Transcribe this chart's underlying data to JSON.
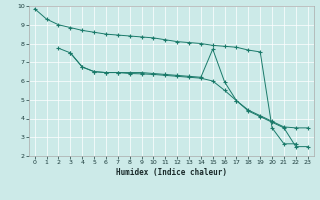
{
  "xlabel": "Humidex (Indice chaleur)",
  "bg_color": "#cceae8",
  "grid_color": "#ffffff",
  "line_color": "#1a7a6a",
  "xlim": [
    -0.5,
    23.5
  ],
  "ylim": [
    2,
    10
  ],
  "xticks": [
    0,
    1,
    2,
    3,
    4,
    5,
    6,
    7,
    8,
    9,
    10,
    11,
    12,
    13,
    14,
    15,
    16,
    17,
    18,
    19,
    20,
    21,
    22,
    23
  ],
  "yticks": [
    2,
    3,
    4,
    5,
    6,
    7,
    8,
    9,
    10
  ],
  "line1_x": [
    0,
    1,
    2,
    3,
    4,
    5,
    6,
    7,
    8,
    9,
    10,
    11,
    12,
    13,
    14,
    15,
    16,
    17,
    18,
    19,
    20,
    21,
    22
  ],
  "line1_y": [
    9.85,
    9.3,
    9.0,
    8.85,
    8.7,
    8.6,
    8.5,
    8.45,
    8.4,
    8.35,
    8.3,
    8.2,
    8.1,
    8.05,
    8.0,
    7.9,
    7.85,
    7.8,
    7.65,
    7.55,
    3.5,
    2.65,
    2.65
  ],
  "line2_x": [
    2,
    3,
    4,
    5,
    6,
    7,
    8,
    9,
    10,
    11,
    12,
    13,
    14,
    15,
    16,
    17,
    18,
    19,
    20,
    21,
    22,
    23
  ],
  "line2_y": [
    7.75,
    7.5,
    6.75,
    6.5,
    6.45,
    6.45,
    6.45,
    6.45,
    6.4,
    6.35,
    6.3,
    6.25,
    6.2,
    7.7,
    5.95,
    4.95,
    4.4,
    4.1,
    3.8,
    3.5,
    2.5,
    2.5
  ],
  "line3_x": [
    3,
    4,
    5,
    6,
    7,
    8,
    9,
    10,
    11,
    12,
    13,
    14,
    15,
    16,
    17,
    18,
    19,
    20,
    21,
    22,
    23
  ],
  "line3_y": [
    7.5,
    6.75,
    6.5,
    6.45,
    6.45,
    6.4,
    6.38,
    6.35,
    6.3,
    6.25,
    6.2,
    6.15,
    6.0,
    5.5,
    4.95,
    4.45,
    4.15,
    3.85,
    3.55,
    3.5,
    3.5
  ]
}
